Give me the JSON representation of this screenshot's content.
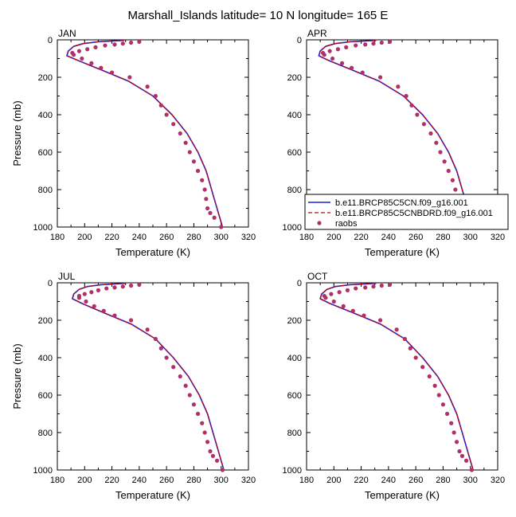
{
  "figure": {
    "title": "Marshall_Islands  latitude= 10 N longitude= 165 E"
  },
  "colors": {
    "model_cn": "#1f1fd6",
    "model_cnbdrd": "#cc0000",
    "raobs": "#b0306a"
  },
  "legend": {
    "entries": [
      {
        "label": "b.e11.BRCP85C5CN.f09_g16.001",
        "style": "solid"
      },
      {
        "label": "b.e11.BRCP85C5CNBDRD.f09_g16.001",
        "style": "dashed"
      },
      {
        "label": "raobs",
        "style": "dot"
      }
    ]
  },
  "chart_data": [
    {
      "type": "line",
      "panel": "JAN",
      "xlabel": "Temperature (K)",
      "ylabel": "Pressure (mb)",
      "xlim": [
        180,
        320
      ],
      "ylim": [
        1000,
        0
      ],
      "xticks": [
        180,
        200,
        220,
        240,
        260,
        280,
        300,
        320
      ],
      "yticks": [
        0,
        200,
        400,
        600,
        800,
        1000
      ],
      "series": [
        {
          "name": "b.e11.BRCP85C5CN.f09_g16.001",
          "x": [
            229,
            210,
            199,
            192,
            188,
            187,
            195,
            212,
            232,
            250,
            264,
            275,
            283,
            289,
            295,
            301
          ],
          "y": [
            3,
            10,
            20,
            35,
            60,
            85,
            110,
            160,
            220,
            300,
            400,
            500,
            600,
            700,
            850,
            1000
          ]
        },
        {
          "name": "b.e11.BRCP85C5CNBDRD.f09_g16.001",
          "x": [
            229,
            210,
            199,
            192,
            188,
            187,
            195,
            212,
            232,
            250,
            264,
            275,
            283,
            289,
            295,
            301
          ],
          "y": [
            3,
            10,
            20,
            35,
            60,
            85,
            110,
            160,
            220,
            300,
            400,
            500,
            600,
            700,
            850,
            1000
          ]
        },
        {
          "name": "raobs",
          "x": [
            240,
            234,
            228,
            222,
            215,
            208,
            202,
            196,
            191,
            192,
            198,
            205,
            212,
            220,
            233,
            246,
            252,
            256,
            260,
            265,
            270,
            274,
            277,
            280,
            283,
            286,
            288,
            289,
            290,
            292,
            295,
            300
          ],
          "y": [
            10,
            15,
            20,
            25,
            30,
            40,
            50,
            60,
            70,
            80,
            100,
            125,
            150,
            175,
            200,
            250,
            300,
            350,
            400,
            450,
            500,
            550,
            600,
            650,
            700,
            750,
            800,
            850,
            900,
            925,
            950,
            1000
          ]
        }
      ]
    },
    {
      "type": "line",
      "panel": "APR",
      "xlabel": "Temperature (K)",
      "ylabel": "",
      "xlim": [
        180,
        320
      ],
      "ylim": [
        1000,
        0
      ],
      "xticks": [
        180,
        200,
        220,
        240,
        260,
        280,
        300,
        320
      ],
      "yticks": [
        0,
        200,
        400,
        600,
        800,
        1000
      ],
      "series": [
        {
          "name": "b.e11.BRCP85C5CN.f09_g16.001",
          "x": [
            231,
            212,
            201,
            194,
            190,
            189,
            196,
            213,
            233,
            251,
            265,
            276,
            284,
            290,
            296,
            302
          ],
          "y": [
            3,
            10,
            20,
            35,
            60,
            85,
            110,
            160,
            220,
            300,
            400,
            500,
            600,
            700,
            850,
            1000
          ]
        },
        {
          "name": "b.e11.BRCP85C5CNBDRD.f09_g16.001",
          "x": [
            231,
            212,
            201,
            194,
            190,
            189,
            196,
            213,
            233,
            251,
            265,
            276,
            284,
            290,
            296,
            302
          ],
          "y": [
            3,
            10,
            20,
            35,
            60,
            85,
            110,
            160,
            220,
            300,
            400,
            500,
            600,
            700,
            850,
            1000
          ]
        },
        {
          "name": "raobs",
          "x": [
            241,
            235,
            229,
            223,
            216,
            209,
            203,
            197,
            192,
            193,
            199,
            206,
            213,
            221,
            234,
            247,
            253,
            257,
            261,
            266,
            271,
            275,
            278,
            281,
            284,
            287,
            289,
            290,
            292,
            294,
            297,
            301
          ],
          "y": [
            10,
            15,
            20,
            25,
            30,
            40,
            50,
            60,
            70,
            80,
            100,
            125,
            150,
            175,
            200,
            250,
            300,
            350,
            400,
            450,
            500,
            550,
            600,
            650,
            700,
            750,
            800,
            850,
            900,
            925,
            950,
            1000
          ]
        }
      ]
    },
    {
      "type": "line",
      "panel": "JUL",
      "xlabel": "Temperature (K)",
      "ylabel": "Pressure (mb)",
      "xlim": [
        180,
        320
      ],
      "ylim": [
        1000,
        0
      ],
      "xticks": [
        180,
        200,
        220,
        240,
        260,
        280,
        300,
        320
      ],
      "yticks": [
        0,
        200,
        400,
        600,
        800,
        1000
      ],
      "series": [
        {
          "name": "b.e11.BRCP85C5CN.f09_g16.001",
          "x": [
            230,
            212,
            202,
            196,
            192,
            191,
            198,
            214,
            234,
            252,
            265,
            276,
            284,
            290,
            296,
            302
          ],
          "y": [
            3,
            10,
            20,
            35,
            60,
            85,
            110,
            160,
            220,
            300,
            400,
            500,
            600,
            700,
            850,
            1000
          ]
        },
        {
          "name": "b.e11.BRCP85C5CNBDRD.f09_g16.001",
          "x": [
            230,
            212,
            202,
            196,
            192,
            191,
            198,
            214,
            234,
            252,
            265,
            276,
            284,
            290,
            296,
            302
          ],
          "y": [
            3,
            10,
            20,
            35,
            60,
            85,
            110,
            160,
            220,
            300,
            400,
            500,
            600,
            700,
            850,
            1000
          ]
        },
        {
          "name": "raobs",
          "x": [
            240,
            234,
            228,
            222,
            216,
            210,
            205,
            200,
            196,
            196,
            201,
            207,
            214,
            222,
            234,
            246,
            252,
            256,
            260,
            265,
            270,
            274,
            277,
            280,
            283,
            286,
            288,
            290,
            292,
            294,
            297,
            301
          ],
          "y": [
            10,
            15,
            20,
            25,
            30,
            40,
            50,
            60,
            70,
            80,
            100,
            125,
            150,
            175,
            200,
            250,
            300,
            350,
            400,
            450,
            500,
            550,
            600,
            650,
            700,
            750,
            800,
            850,
            900,
            925,
            950,
            1000
          ]
        }
      ]
    },
    {
      "type": "line",
      "panel": "OCT",
      "xlabel": "Temperature (K)",
      "ylabel": "",
      "xlim": [
        180,
        320
      ],
      "ylim": [
        1000,
        0
      ],
      "xticks": [
        180,
        200,
        220,
        240,
        260,
        280,
        300,
        320
      ],
      "yticks": [
        0,
        200,
        400,
        600,
        800,
        1000
      ],
      "series": [
        {
          "name": "b.e11.BRCP85C5CN.f09_g16.001",
          "x": [
            231,
            212,
            201,
            195,
            191,
            190,
            197,
            214,
            234,
            252,
            265,
            276,
            284,
            290,
            296,
            302
          ],
          "y": [
            3,
            10,
            20,
            35,
            60,
            85,
            110,
            160,
            220,
            300,
            400,
            500,
            600,
            700,
            850,
            1000
          ]
        },
        {
          "name": "b.e11.BRCP85C5CNBDRD.f09_g16.001",
          "x": [
            231,
            212,
            201,
            195,
            191,
            190,
            197,
            214,
            234,
            252,
            265,
            276,
            284,
            290,
            296,
            302
          ],
          "y": [
            3,
            10,
            20,
            35,
            60,
            85,
            110,
            160,
            220,
            300,
            400,
            500,
            600,
            700,
            850,
            1000
          ]
        },
        {
          "name": "raobs",
          "x": [
            241,
            235,
            229,
            223,
            216,
            210,
            204,
            198,
            193,
            194,
            200,
            207,
            214,
            222,
            234,
            246,
            252,
            256,
            260,
            265,
            270,
            274,
            277,
            280,
            283,
            286,
            288,
            290,
            292,
            294,
            297,
            301
          ],
          "y": [
            10,
            15,
            20,
            25,
            30,
            40,
            50,
            60,
            70,
            80,
            100,
            125,
            150,
            175,
            200,
            250,
            300,
            350,
            400,
            450,
            500,
            550,
            600,
            650,
            700,
            750,
            800,
            850,
            900,
            925,
            950,
            1000
          ]
        }
      ]
    }
  ]
}
